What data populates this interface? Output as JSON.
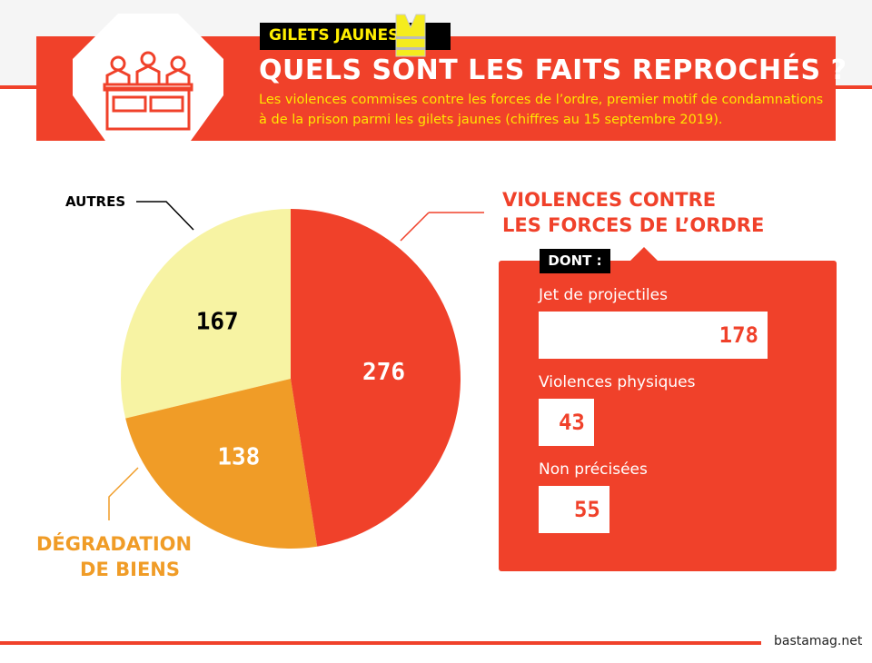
{
  "header": {
    "tag": "GILETS JAUNES",
    "title": "QUELS SONT LES FAITS REPROCHÉS ?",
    "subtitle": "Les violences commises contre les forces de l’ordre, premier motif de condamnations à de la prison parmi les gilets jaunes (chiffres au 15 septembre 2019).",
    "icons": [
      "tribunal-judges-icon",
      "yellow-vest-icon"
    ]
  },
  "colors": {
    "red": "#f0412a",
    "orange": "#f09c27",
    "yellow": "#f7f3a3",
    "accent_yellow": "#ffe600"
  },
  "chart_data": {
    "type": "pie",
    "slices": [
      {
        "label": "VIOLENCES CONTRE LES FORCES DE L’ORDRE",
        "value": 276,
        "color": "#f0412a"
      },
      {
        "label": "DÉGRADATION DE BIENS",
        "value": 138,
        "color": "#f09c27"
      },
      {
        "label": "AUTRES",
        "value": 167,
        "color": "#f7f3a3"
      }
    ]
  },
  "labels": {
    "violences_l1": "VIOLENCES CONTRE",
    "violences_l2": "LES FORCES DE L’ORDRE",
    "degradation_l1": "DÉGRADATION",
    "degradation_l2": "DE BIENS",
    "autres": "AUTRES"
  },
  "breakdown": {
    "title": "DONT :",
    "items": [
      {
        "label": "Jet de projectiles",
        "value": 178
      },
      {
        "label": "Violences physiques",
        "value": 43
      },
      {
        "label": "Non précisées",
        "value": 55
      }
    ]
  },
  "source": "bastamag.net"
}
